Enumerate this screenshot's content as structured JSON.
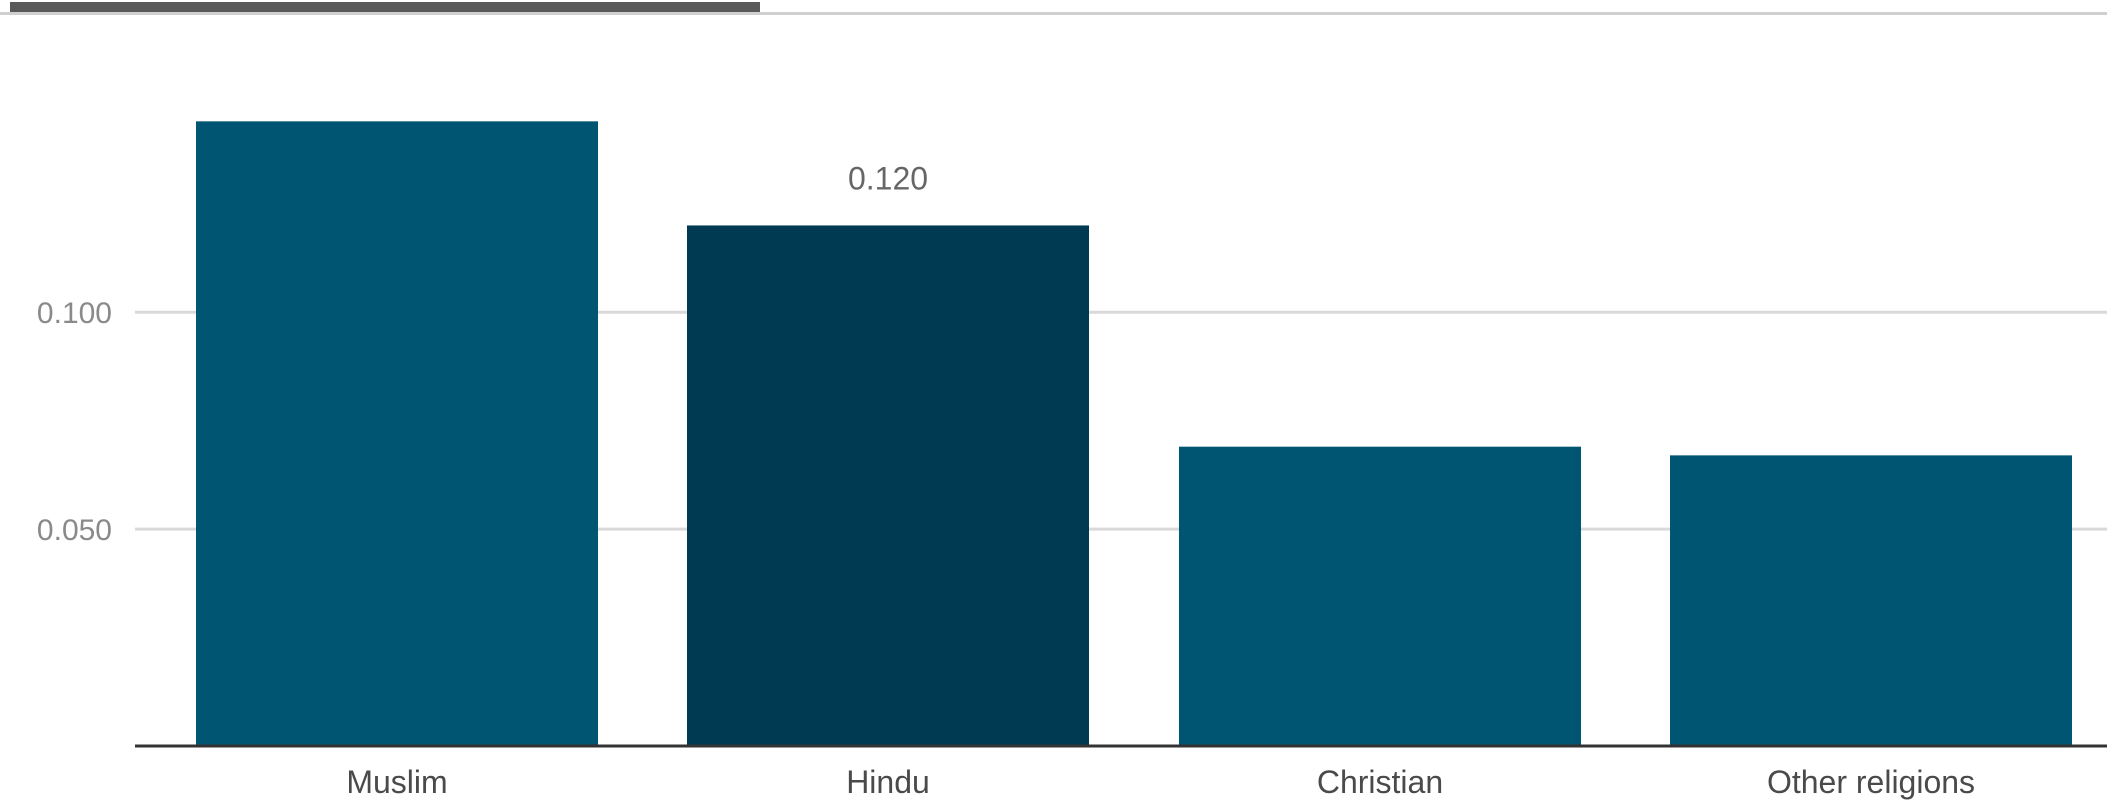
{
  "chart_data": {
    "type": "bar",
    "title": "",
    "xlabel": "",
    "ylabel": "",
    "categories": [
      "Muslim",
      "Hindu",
      "Christian",
      "Other religions"
    ],
    "values": [
      0.144,
      0.12,
      0.069,
      0.067
    ],
    "highlighted_index": 1,
    "value_labels": [
      "",
      "0.120",
      "",
      ""
    ],
    "ylim": [
      0,
      0.145
    ],
    "yticks": [
      0.05,
      0.1
    ],
    "ytick_labels": [
      "0.050",
      "0.100"
    ],
    "grid": true,
    "legend": "none",
    "colors": {
      "bar": "#005672",
      "bar_highlight": "#003a52",
      "grid": "#d9d9d9",
      "axis": "#333333",
      "tab_active": "#595959",
      "tab_rule": "#cfcfcf"
    }
  }
}
